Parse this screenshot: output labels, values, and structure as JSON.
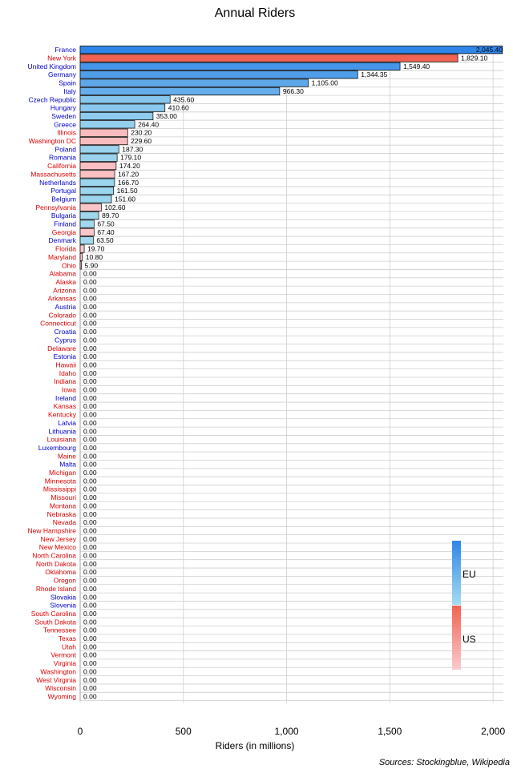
{
  "chart_data": {
    "type": "bar",
    "orientation": "horizontal",
    "title": "Annual Riders",
    "xlabel": "Riders (in millions)",
    "ylabel": "",
    "xlim": [
      0,
      2050
    ],
    "xticks": [
      0,
      500,
      1000,
      1500,
      2000
    ],
    "xtick_labels": [
      "0",
      "500",
      "1,000",
      "1,500",
      "2,000"
    ],
    "grid": "vertical and horizontal lines",
    "source": "Sources: Stockingblue, Wikipedia",
    "legend": {
      "placement": "bottom-right",
      "entries": [
        {
          "label": "EU",
          "color_top": "#2f86e8",
          "color_bottom": "#a6dcee"
        },
        {
          "label": "US",
          "color_top": "#f06352",
          "color_bottom": "#fbcbd0"
        }
      ]
    },
    "group_colors": {
      "EU": {
        "label": "#0000cc"
      },
      "US": {
        "label": "#dd0000"
      }
    },
    "bars": [
      {
        "name": "France",
        "group": "EU",
        "value": 2045.4,
        "label": "2,045.40"
      },
      {
        "name": "New York",
        "group": "US",
        "value": 1829.1,
        "label": "1,829.10"
      },
      {
        "name": "United Kingdom",
        "group": "EU",
        "value": 1549.4,
        "label": "1,549.40"
      },
      {
        "name": "Germany",
        "group": "EU",
        "value": 1344.35,
        "label": "1,344.35"
      },
      {
        "name": "Spain",
        "group": "EU",
        "value": 1105.0,
        "label": "1,105.00"
      },
      {
        "name": "Italy",
        "group": "EU",
        "value": 966.3,
        "label": "966.30"
      },
      {
        "name": "Czech Republic",
        "group": "EU",
        "value": 435.6,
        "label": "435.60"
      },
      {
        "name": "Hungary",
        "group": "EU",
        "value": 410.6,
        "label": "410.60"
      },
      {
        "name": "Sweden",
        "group": "EU",
        "value": 353.0,
        "label": "353.00"
      },
      {
        "name": "Greece",
        "group": "EU",
        "value": 264.4,
        "label": "264.40"
      },
      {
        "name": "Illinois",
        "group": "US",
        "value": 230.2,
        "label": "230.20"
      },
      {
        "name": "Washington DC",
        "group": "US",
        "value": 229.6,
        "label": "229.60"
      },
      {
        "name": "Poland",
        "group": "EU",
        "value": 187.3,
        "label": "187.30"
      },
      {
        "name": "Romania",
        "group": "EU",
        "value": 179.1,
        "label": "179.10"
      },
      {
        "name": "California",
        "group": "US",
        "value": 174.2,
        "label": "174.20"
      },
      {
        "name": "Massachusetts",
        "group": "US",
        "value": 167.2,
        "label": "167.20"
      },
      {
        "name": "Netherlands",
        "group": "EU",
        "value": 166.7,
        "label": "166.70"
      },
      {
        "name": "Portugal",
        "group": "EU",
        "value": 161.5,
        "label": "161.50"
      },
      {
        "name": "Belgium",
        "group": "EU",
        "value": 151.6,
        "label": "151.60"
      },
      {
        "name": "Pennsylvania",
        "group": "US",
        "value": 102.6,
        "label": "102.60"
      },
      {
        "name": "Bulgaria",
        "group": "EU",
        "value": 89.7,
        "label": "89.70"
      },
      {
        "name": "Finland",
        "group": "EU",
        "value": 67.5,
        "label": "67.50"
      },
      {
        "name": "Georgia",
        "group": "US",
        "value": 67.4,
        "label": "67.40"
      },
      {
        "name": "Denmark",
        "group": "EU",
        "value": 63.5,
        "label": "63.50"
      },
      {
        "name": "Florida",
        "group": "US",
        "value": 19.7,
        "label": "19.70"
      },
      {
        "name": "Maryland",
        "group": "US",
        "value": 10.8,
        "label": "10.80"
      },
      {
        "name": "Ohio",
        "group": "US",
        "value": 5.9,
        "label": "5.90"
      },
      {
        "name": "Alabama",
        "group": "US",
        "value": 0,
        "label": "0.00"
      },
      {
        "name": "Alaska",
        "group": "US",
        "value": 0,
        "label": "0.00"
      },
      {
        "name": "Arizona",
        "group": "US",
        "value": 0,
        "label": "0.00"
      },
      {
        "name": "Arkansas",
        "group": "US",
        "value": 0,
        "label": "0.00"
      },
      {
        "name": "Austria",
        "group": "EU",
        "value": 0,
        "label": "0.00"
      },
      {
        "name": "Colorado",
        "group": "US",
        "value": 0,
        "label": "0.00"
      },
      {
        "name": "Connecticut",
        "group": "US",
        "value": 0,
        "label": "0.00"
      },
      {
        "name": "Croatia",
        "group": "EU",
        "value": 0,
        "label": "0.00"
      },
      {
        "name": "Cyprus",
        "group": "EU",
        "value": 0,
        "label": "0.00"
      },
      {
        "name": "Delaware",
        "group": "US",
        "value": 0,
        "label": "0.00"
      },
      {
        "name": "Estonia",
        "group": "EU",
        "value": 0,
        "label": "0.00"
      },
      {
        "name": "Hawaii",
        "group": "US",
        "value": 0,
        "label": "0.00"
      },
      {
        "name": "Idaho",
        "group": "US",
        "value": 0,
        "label": "0.00"
      },
      {
        "name": "Indiana",
        "group": "US",
        "value": 0,
        "label": "0.00"
      },
      {
        "name": "Iowa",
        "group": "US",
        "value": 0,
        "label": "0.00"
      },
      {
        "name": "Ireland",
        "group": "EU",
        "value": 0,
        "label": "0.00"
      },
      {
        "name": "Kansas",
        "group": "US",
        "value": 0,
        "label": "0.00"
      },
      {
        "name": "Kentucky",
        "group": "US",
        "value": 0,
        "label": "0.00"
      },
      {
        "name": "Latvia",
        "group": "EU",
        "value": 0,
        "label": "0.00"
      },
      {
        "name": "Lithuania",
        "group": "EU",
        "value": 0,
        "label": "0.00"
      },
      {
        "name": "Louisiana",
        "group": "US",
        "value": 0,
        "label": "0.00"
      },
      {
        "name": "Luxembourg",
        "group": "EU",
        "value": 0,
        "label": "0.00"
      },
      {
        "name": "Maine",
        "group": "US",
        "value": 0,
        "label": "0.00"
      },
      {
        "name": "Malta",
        "group": "EU",
        "value": 0,
        "label": "0.00"
      },
      {
        "name": "Michigan",
        "group": "US",
        "value": 0,
        "label": "0.00"
      },
      {
        "name": "Minnesota",
        "group": "US",
        "value": 0,
        "label": "0.00"
      },
      {
        "name": "Mississippi",
        "group": "US",
        "value": 0,
        "label": "0.00"
      },
      {
        "name": "Missouri",
        "group": "US",
        "value": 0,
        "label": "0.00"
      },
      {
        "name": "Montana",
        "group": "US",
        "value": 0,
        "label": "0.00"
      },
      {
        "name": "Nebraska",
        "group": "US",
        "value": 0,
        "label": "0.00"
      },
      {
        "name": "Nevada",
        "group": "US",
        "value": 0,
        "label": "0.00"
      },
      {
        "name": "New Hampshire",
        "group": "US",
        "value": 0,
        "label": "0.00"
      },
      {
        "name": "New Jersey",
        "group": "US",
        "value": 0,
        "label": "0.00"
      },
      {
        "name": "New Mexico",
        "group": "US",
        "value": 0,
        "label": "0.00"
      },
      {
        "name": "North Carolina",
        "group": "US",
        "value": 0,
        "label": "0.00"
      },
      {
        "name": "North Dakota",
        "group": "US",
        "value": 0,
        "label": "0.00"
      },
      {
        "name": "Oklahoma",
        "group": "US",
        "value": 0,
        "label": "0.00"
      },
      {
        "name": "Oregon",
        "group": "US",
        "value": 0,
        "label": "0.00"
      },
      {
        "name": "Rhode Island",
        "group": "US",
        "value": 0,
        "label": "0.00"
      },
      {
        "name": "Slovakia",
        "group": "EU",
        "value": 0,
        "label": "0.00"
      },
      {
        "name": "Slovenia",
        "group": "EU",
        "value": 0,
        "label": "0.00"
      },
      {
        "name": "South Carolina",
        "group": "US",
        "value": 0,
        "label": "0.00"
      },
      {
        "name": "South Dakota",
        "group": "US",
        "value": 0,
        "label": "0.00"
      },
      {
        "name": "Tennessee",
        "group": "US",
        "value": 0,
        "label": "0.00"
      },
      {
        "name": "Texas",
        "group": "US",
        "value": 0,
        "label": "0.00"
      },
      {
        "name": "Utah",
        "group": "US",
        "value": 0,
        "label": "0.00"
      },
      {
        "name": "Vermont",
        "group": "US",
        "value": 0,
        "label": "0.00"
      },
      {
        "name": "Virginia",
        "group": "US",
        "value": 0,
        "label": "0.00"
      },
      {
        "name": "Washington",
        "group": "US",
        "value": 0,
        "label": "0.00"
      },
      {
        "name": "West Virginia",
        "group": "US",
        "value": 0,
        "label": "0.00"
      },
      {
        "name": "Wisconsin",
        "group": "US",
        "value": 0,
        "label": "0.00"
      },
      {
        "name": "Wyoming",
        "group": "US",
        "value": 0,
        "label": "0.00"
      }
    ]
  }
}
